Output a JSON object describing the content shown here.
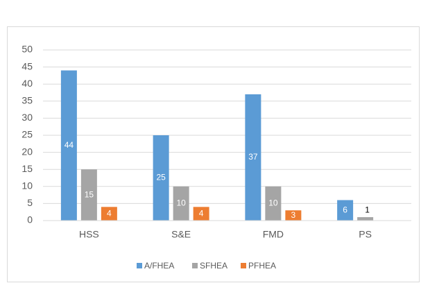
{
  "chart_data": {
    "type": "bar",
    "categories": [
      "HSS",
      "S&E",
      "FMD",
      "PS"
    ],
    "series": [
      {
        "name": "A/FHEA",
        "color": "#5b9bd5",
        "values": [
          44,
          25,
          37,
          6
        ]
      },
      {
        "name": "SFHEA",
        "color": "#a5a5a5",
        "values": [
          15,
          10,
          10,
          1
        ]
      },
      {
        "name": "PFHEA",
        "color": "#ed7d31",
        "values": [
          4,
          4,
          3,
          null
        ]
      }
    ],
    "ylim": [
      0,
      50
    ],
    "yticks": [
      0,
      5,
      10,
      15,
      20,
      25,
      30,
      35,
      40,
      45,
      50
    ],
    "grid": true,
    "legend": "bottom"
  }
}
